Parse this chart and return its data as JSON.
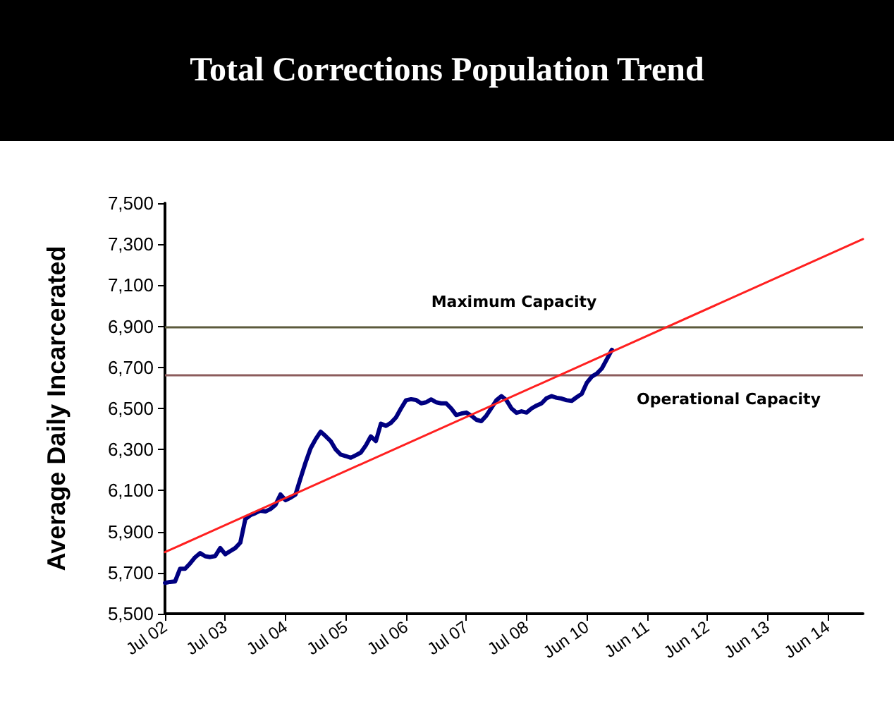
{
  "chart_data": {
    "type": "line",
    "title": "Total Corrections Population Trend",
    "ylabel": "Average Daily Incarcerated",
    "categories": [
      "Jul 02",
      null,
      null,
      null,
      null,
      null,
      null,
      null,
      null,
      null,
      null,
      null,
      "Jul 03",
      null,
      null,
      null,
      null,
      null,
      null,
      null,
      null,
      null,
      null,
      null,
      "Jul 04",
      null,
      null,
      null,
      null,
      null,
      null,
      null,
      null,
      null,
      null,
      null,
      "Jul 05",
      null,
      null,
      null,
      null,
      null,
      null,
      null,
      null,
      null,
      null,
      null,
      "Jul 06",
      null,
      null,
      null,
      null,
      null,
      null,
      null,
      null,
      null,
      null,
      null,
      "Jul 07",
      null,
      null,
      null,
      null,
      null,
      null,
      null,
      null,
      null,
      null,
      null,
      "Jul 08",
      null,
      null,
      null,
      null,
      null,
      null,
      null,
      null,
      null,
      null,
      null,
      "Jun 10",
      null,
      null,
      null,
      null,
      null,
      null,
      null,
      null,
      null,
      null,
      null,
      "Jun 11",
      null,
      null,
      null,
      null,
      null,
      null,
      null,
      null,
      null,
      null,
      null,
      "Jun 12",
      null,
      null,
      null,
      null,
      null,
      null,
      null,
      null,
      null,
      null,
      null,
      "Jun 13",
      null,
      null,
      null,
      null,
      null,
      null,
      null,
      null,
      null,
      null,
      null,
      "Jun 14",
      null,
      null,
      null,
      null,
      null,
      null,
      null
    ],
    "series": [
      {
        "color": "#000080",
        "values": [
          5650,
          5655,
          5657,
          5719,
          5719,
          5745,
          5775,
          5795,
          5780,
          5776,
          5781,
          5820,
          5790,
          5805,
          5820,
          5846,
          5961,
          5980,
          5990,
          6002,
          5998,
          6010,
          6030,
          6081,
          6053,
          6065,
          6081,
          6160,
          6237,
          6306,
          6350,
          6387,
          6365,
          6341,
          6300,
          6275,
          6268,
          6260,
          6272,
          6285,
          6320,
          6364,
          6341,
          6426,
          6415,
          6430,
          6456,
          6500,
          6540,
          6545,
          6541,
          6525,
          6530,
          6544,
          6530,
          6525,
          6525,
          6500,
          6468,
          6475,
          6480,
          6465,
          6445,
          6438,
          6465,
          6502,
          6540,
          6560,
          6540,
          6500,
          6479,
          6486,
          6480,
          6500,
          6514,
          6525,
          6550,
          6560,
          6552,
          6548,
          6540,
          6537,
          6555,
          6571,
          6625,
          6655,
          6670,
          6695,
          6740,
          6786,
          null,
          null,
          null,
          null,
          null,
          null,
          null,
          null,
          null,
          null,
          null,
          null,
          null,
          null,
          null,
          null,
          null,
          null,
          null,
          null,
          null,
          null,
          null,
          null,
          null,
          null,
          null,
          null,
          null,
          null,
          null,
          null,
          null,
          null,
          null,
          null,
          null,
          null,
          null,
          null,
          null,
          null,
          null,
          null,
          null,
          null,
          null,
          null,
          null,
          null
        ]
      },
      {
        "color": "#ff2020",
        "values": [
          5800,
          null,
          null,
          null,
          null,
          null,
          null,
          null,
          null,
          null,
          null,
          null,
          null,
          null,
          null,
          null,
          null,
          null,
          null,
          null,
          null,
          null,
          null,
          null,
          null,
          null,
          null,
          null,
          null,
          null,
          null,
          null,
          null,
          null,
          null,
          null,
          null,
          null,
          null,
          null,
          null,
          null,
          null,
          null,
          null,
          null,
          null,
          null,
          null,
          null,
          null,
          null,
          null,
          null,
          null,
          null,
          null,
          null,
          null,
          null,
          null,
          null,
          null,
          null,
          null,
          null,
          null,
          null,
          null,
          null,
          null,
          null,
          null,
          null,
          null,
          null,
          null,
          null,
          null,
          null,
          null,
          null,
          null,
          null,
          null,
          null,
          null,
          null,
          null,
          null,
          null,
          null,
          null,
          null,
          null,
          null,
          null,
          null,
          null,
          null,
          null,
          null,
          null,
          null,
          null,
          null,
          null,
          null,
          null,
          null,
          null,
          null,
          null,
          null,
          null,
          null,
          null,
          null,
          null,
          null,
          null,
          null,
          null,
          null,
          null,
          null,
          null,
          null,
          null,
          null,
          null,
          null,
          null,
          null,
          null,
          null,
          null,
          null,
          null,
          7325
        ]
      }
    ],
    "ylim": [
      5500,
      7500
    ],
    "yticks": [
      {
        "value": 5500,
        "label": "5,500"
      },
      {
        "value": 5700,
        "label": "5,700"
      },
      {
        "value": 5900,
        "label": "5,900"
      },
      {
        "value": 6100,
        "label": "6,100"
      },
      {
        "value": 6300,
        "label": "6,300"
      },
      {
        "value": 6500,
        "label": "6,500"
      },
      {
        "value": 6700,
        "label": "6,700"
      },
      {
        "value": 6900,
        "label": "6,900"
      },
      {
        "value": 7100,
        "label": "7,100"
      },
      {
        "value": 7300,
        "label": "7,300"
      },
      {
        "value": 7500,
        "label": "7,500"
      }
    ],
    "ref_lines": [
      {
        "axis": "y",
        "value": 6900,
        "label": "Maximum Capacity",
        "color": "#5c5a3c"
      },
      {
        "axis": "y",
        "value": 6665,
        "label": "Operational Capacity",
        "color": "#8c5c5c"
      }
    ],
    "grid": false,
    "marker": "none",
    "line_style": "solid"
  }
}
